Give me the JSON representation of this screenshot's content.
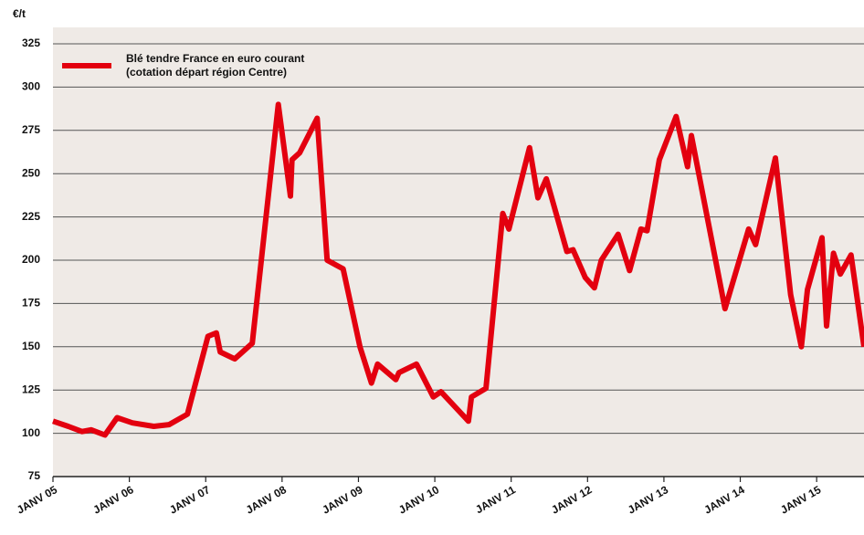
{
  "chart_data": {
    "type": "line",
    "ylabel": "€/t",
    "x": [
      2005,
      2005.2,
      2005.38,
      2005.5,
      2005.68,
      2005.84,
      2006.04,
      2006.32,
      2006.52,
      2006.76,
      2007.03,
      2007.14,
      2007.19,
      2007.38,
      2007.61,
      2007.95,
      2008.11,
      2008.13,
      2008.23,
      2008.46,
      2008.59,
      2008.8,
      2009.02,
      2009.17,
      2009.25,
      2009.49,
      2009.53,
      2009.76,
      2009.98,
      2010.08,
      2010.44,
      2010.48,
      2010.67,
      2010.89,
      2010.97,
      2011.24,
      2011.35,
      2011.46,
      2011.73,
      2011.81,
      2011.97,
      2012.09,
      2012.18,
      2012.4,
      2012.55,
      2012.7,
      2012.78,
      2012.94,
      2013.16,
      2013.31,
      2013.36,
      2013.8,
      2014.11,
      2014.2,
      2014.46,
      2014.66,
      2014.8,
      2014.88,
      2015.07,
      2015.13,
      2015.22,
      2015.31,
      2015.45,
      2015.62
    ],
    "series": [
      {
        "name": "Blé tendre France en euro courant (cotation départ région Centre)",
        "color": "#e3000f",
        "values": [
          107,
          104,
          101,
          102,
          99,
          109,
          106,
          104,
          105,
          111,
          156,
          158,
          147,
          143,
          152,
          290,
          237,
          258,
          262,
          282,
          200,
          195,
          150,
          129,
          140,
          131,
          135,
          140,
          121,
          124,
          107,
          121,
          126,
          227,
          218,
          265,
          236,
          247,
          205,
          206,
          190,
          184,
          200,
          215,
          194,
          218,
          217,
          258,
          283,
          254,
          272,
          172,
          218,
          209,
          259,
          180,
          150,
          183,
          213,
          162,
          204,
          192,
          203,
          150
        ]
      }
    ],
    "xlim": [
      2005,
      2015.62
    ],
    "xticks": [
      {
        "value": 2005,
        "label": "JANV 05"
      },
      {
        "value": 2006,
        "label": "JANV 06"
      },
      {
        "value": 2007,
        "label": "JANV 07"
      },
      {
        "value": 2008,
        "label": "JANV 08"
      },
      {
        "value": 2009,
        "label": "JANV 09"
      },
      {
        "value": 2010,
        "label": "JANV 10"
      },
      {
        "value": 2011,
        "label": "JANV 11"
      },
      {
        "value": 2012,
        "label": "JANV 12"
      },
      {
        "value": 2013,
        "label": "JANV 13"
      },
      {
        "value": 2014,
        "label": "JANV 14"
      },
      {
        "value": 2015,
        "label": "JANV 15"
      }
    ],
    "ylim": [
      75,
      325
    ],
    "yticks": [
      75,
      100,
      125,
      150,
      175,
      200,
      225,
      250,
      275,
      300,
      325
    ],
    "grid": true,
    "legend": "top-left"
  }
}
